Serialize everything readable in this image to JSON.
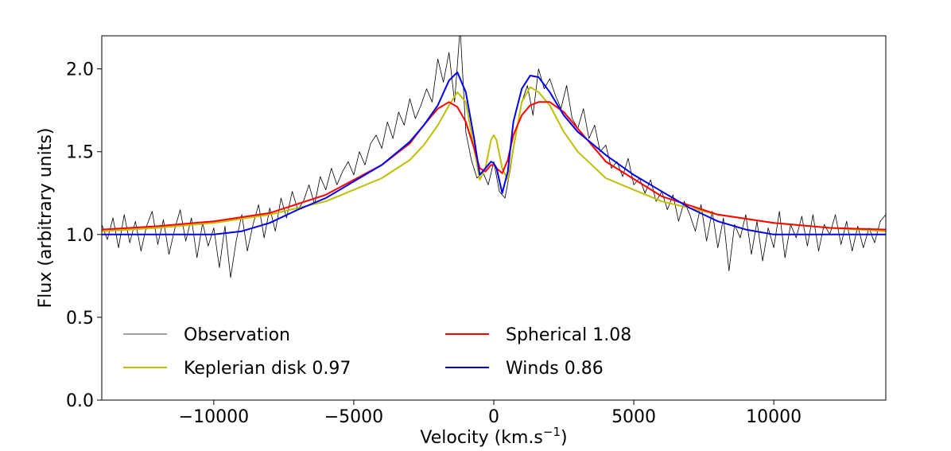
{
  "chart_data": {
    "type": "line",
    "title": "",
    "xlabel": "Velocity (km.s",
    "xlabel_sup": "−1",
    "xlabel_tail": ")",
    "ylabel": "Flux (arbitrary units)",
    "xlim": [
      -14000,
      14000
    ],
    "ylim": [
      0,
      2.2
    ],
    "xticks": [
      -10000,
      -5000,
      0,
      5000,
      10000
    ],
    "xtick_labels": [
      "−10000",
      "−5000",
      "0",
      "5000",
      "10000"
    ],
    "yticks": [
      0,
      0.5,
      1.0,
      1.5,
      2.0
    ],
    "ytick_labels": [
      "0.0",
      "0.5",
      "1.0",
      "1.5",
      "2.0"
    ],
    "grid": false,
    "legend_position": "lower-center",
    "series": [
      {
        "name": "Observation",
        "color": "#000000",
        "width": 0.8,
        "x": [
          -14000,
          -13800,
          -13600,
          -13400,
          -13200,
          -13000,
          -12800,
          -12600,
          -12400,
          -12200,
          -12000,
          -11800,
          -11600,
          -11400,
          -11200,
          -11000,
          -10800,
          -10600,
          -10400,
          -10200,
          -10000,
          -9800,
          -9600,
          -9400,
          -9200,
          -9000,
          -8800,
          -8600,
          -8400,
          -8200,
          -8000,
          -7800,
          -7600,
          -7400,
          -7200,
          -7000,
          -6800,
          -6600,
          -6400,
          -6200,
          -6000,
          -5800,
          -5600,
          -5400,
          -5200,
          -5000,
          -4800,
          -4600,
          -4400,
          -4200,
          -4000,
          -3800,
          -3600,
          -3400,
          -3200,
          -3000,
          -2800,
          -2600,
          -2400,
          -2200,
          -2000,
          -1800,
          -1600,
          -1400,
          -1200,
          -1000,
          -800,
          -600,
          -400,
          -200,
          0,
          200,
          400,
          600,
          800,
          1000,
          1200,
          1400,
          1600,
          1800,
          2000,
          2200,
          2400,
          2600,
          2800,
          3000,
          3200,
          3400,
          3600,
          3800,
          4000,
          4200,
          4400,
          4600,
          4800,
          5000,
          5200,
          5400,
          5600,
          5800,
          6000,
          6200,
          6400,
          6600,
          6800,
          7000,
          7200,
          7400,
          7600,
          7800,
          8000,
          8200,
          8400,
          8600,
          8800,
          9000,
          9200,
          9400,
          9600,
          9800,
          10000,
          10200,
          10400,
          10600,
          10800,
          11000,
          11200,
          11400,
          11600,
          11800,
          12000,
          12200,
          12400,
          12600,
          12800,
          13000,
          13200,
          13400,
          13600,
          13800,
          14000
        ],
        "values": [
          1.06,
          0.97,
          1.1,
          0.92,
          1.12,
          0.95,
          1.08,
          0.9,
          1.05,
          1.14,
          0.94,
          1.09,
          0.88,
          1.03,
          1.15,
          0.96,
          1.1,
          0.86,
          1.07,
          0.93,
          1.04,
          0.8,
          1.05,
          0.74,
          0.96,
          1.12,
          0.9,
          1.06,
          1.18,
          0.98,
          1.16,
          1.02,
          1.22,
          1.1,
          1.26,
          1.15,
          1.2,
          1.3,
          1.18,
          1.35,
          1.27,
          1.4,
          1.3,
          1.38,
          1.44,
          1.36,
          1.5,
          1.42,
          1.55,
          1.6,
          1.52,
          1.68,
          1.58,
          1.74,
          1.66,
          1.82,
          1.7,
          1.78,
          1.88,
          1.8,
          2.06,
          1.92,
          2.1,
          1.8,
          2.25,
          1.62,
          1.45,
          1.34,
          1.38,
          1.3,
          1.44,
          1.26,
          1.22,
          1.4,
          1.62,
          1.8,
          1.9,
          1.72,
          2.0,
          1.88,
          1.94,
          1.84,
          1.76,
          1.9,
          1.7,
          1.64,
          1.76,
          1.58,
          1.66,
          1.5,
          1.54,
          1.4,
          1.44,
          1.35,
          1.46,
          1.3,
          1.34,
          1.25,
          1.33,
          1.2,
          1.26,
          1.15,
          1.24,
          1.08,
          1.2,
          1.12,
          1.02,
          1.18,
          0.96,
          1.14,
          0.92,
          1.1,
          0.78,
          1.06,
          0.98,
          1.12,
          0.88,
          1.08,
          0.84,
          1.04,
          0.92,
          1.14,
          0.86,
          1.06,
          0.98,
          1.11,
          0.93,
          1.12,
          0.9,
          1.06,
          1.0,
          1.12,
          0.94,
          1.08,
          0.9,
          1.05,
          0.92,
          1.04,
          0.95,
          1.08,
          1.12
        ]
      },
      {
        "name": "Keplerian disk  0.97",
        "color": "#bfbf00",
        "width": 2,
        "x": [
          -14000,
          -12000,
          -10000,
          -8000,
          -6000,
          -4000,
          -3000,
          -2500,
          -2000,
          -1600,
          -1300,
          -1000,
          -700,
          -500,
          -300,
          -100,
          0,
          100,
          300,
          500,
          700,
          1000,
          1300,
          1600,
          2000,
          2500,
          3000,
          4000,
          6000,
          8000,
          10000,
          12000,
          14000
        ],
        "values": [
          1.02,
          1.04,
          1.07,
          1.12,
          1.2,
          1.34,
          1.45,
          1.54,
          1.66,
          1.78,
          1.86,
          1.8,
          1.52,
          1.33,
          1.4,
          1.57,
          1.6,
          1.57,
          1.4,
          1.33,
          1.52,
          1.8,
          1.89,
          1.86,
          1.78,
          1.62,
          1.5,
          1.34,
          1.2,
          1.12,
          1.07,
          1.04,
          1.02
        ]
      },
      {
        "name": "Spherical  1.08",
        "color": "#ff0000",
        "width": 2,
        "x": [
          -14000,
          -12000,
          -10000,
          -8000,
          -6000,
          -4000,
          -3000,
          -2500,
          -2000,
          -1600,
          -1300,
          -1000,
          -700,
          -500,
          -300,
          -100,
          0,
          100,
          300,
          500,
          700,
          1000,
          1300,
          1600,
          2000,
          2500,
          3000,
          4000,
          6000,
          8000,
          10000,
          12000,
          14000
        ],
        "values": [
          1.03,
          1.05,
          1.08,
          1.13,
          1.24,
          1.42,
          1.55,
          1.66,
          1.76,
          1.8,
          1.77,
          1.68,
          1.52,
          1.4,
          1.38,
          1.42,
          1.42,
          1.4,
          1.37,
          1.45,
          1.6,
          1.72,
          1.78,
          1.8,
          1.8,
          1.74,
          1.64,
          1.44,
          1.23,
          1.12,
          1.07,
          1.04,
          1.03
        ]
      },
      {
        "name": "Winds  0.86",
        "color": "#0000ee",
        "width": 2,
        "x": [
          -14000,
          -12000,
          -10000,
          -9000,
          -8000,
          -7000,
          -6000,
          -5000,
          -4000,
          -3000,
          -2500,
          -2000,
          -1600,
          -1300,
          -1000,
          -700,
          -500,
          -300,
          -100,
          0,
          100,
          300,
          500,
          700,
          1000,
          1300,
          1600,
          2000,
          2500,
          3000,
          4000,
          5000,
          6000,
          7000,
          8000,
          9000,
          10000,
          12000,
          14000
        ],
        "values": [
          1.0,
          1.0,
          1.0,
          1.02,
          1.07,
          1.15,
          1.22,
          1.32,
          1.42,
          1.56,
          1.66,
          1.78,
          1.93,
          1.98,
          1.86,
          1.58,
          1.36,
          1.4,
          1.44,
          1.43,
          1.4,
          1.25,
          1.38,
          1.68,
          1.88,
          1.96,
          1.95,
          1.86,
          1.72,
          1.62,
          1.48,
          1.36,
          1.26,
          1.16,
          1.08,
          1.03,
          1.0,
          1.0,
          1.0
        ]
      }
    ]
  }
}
